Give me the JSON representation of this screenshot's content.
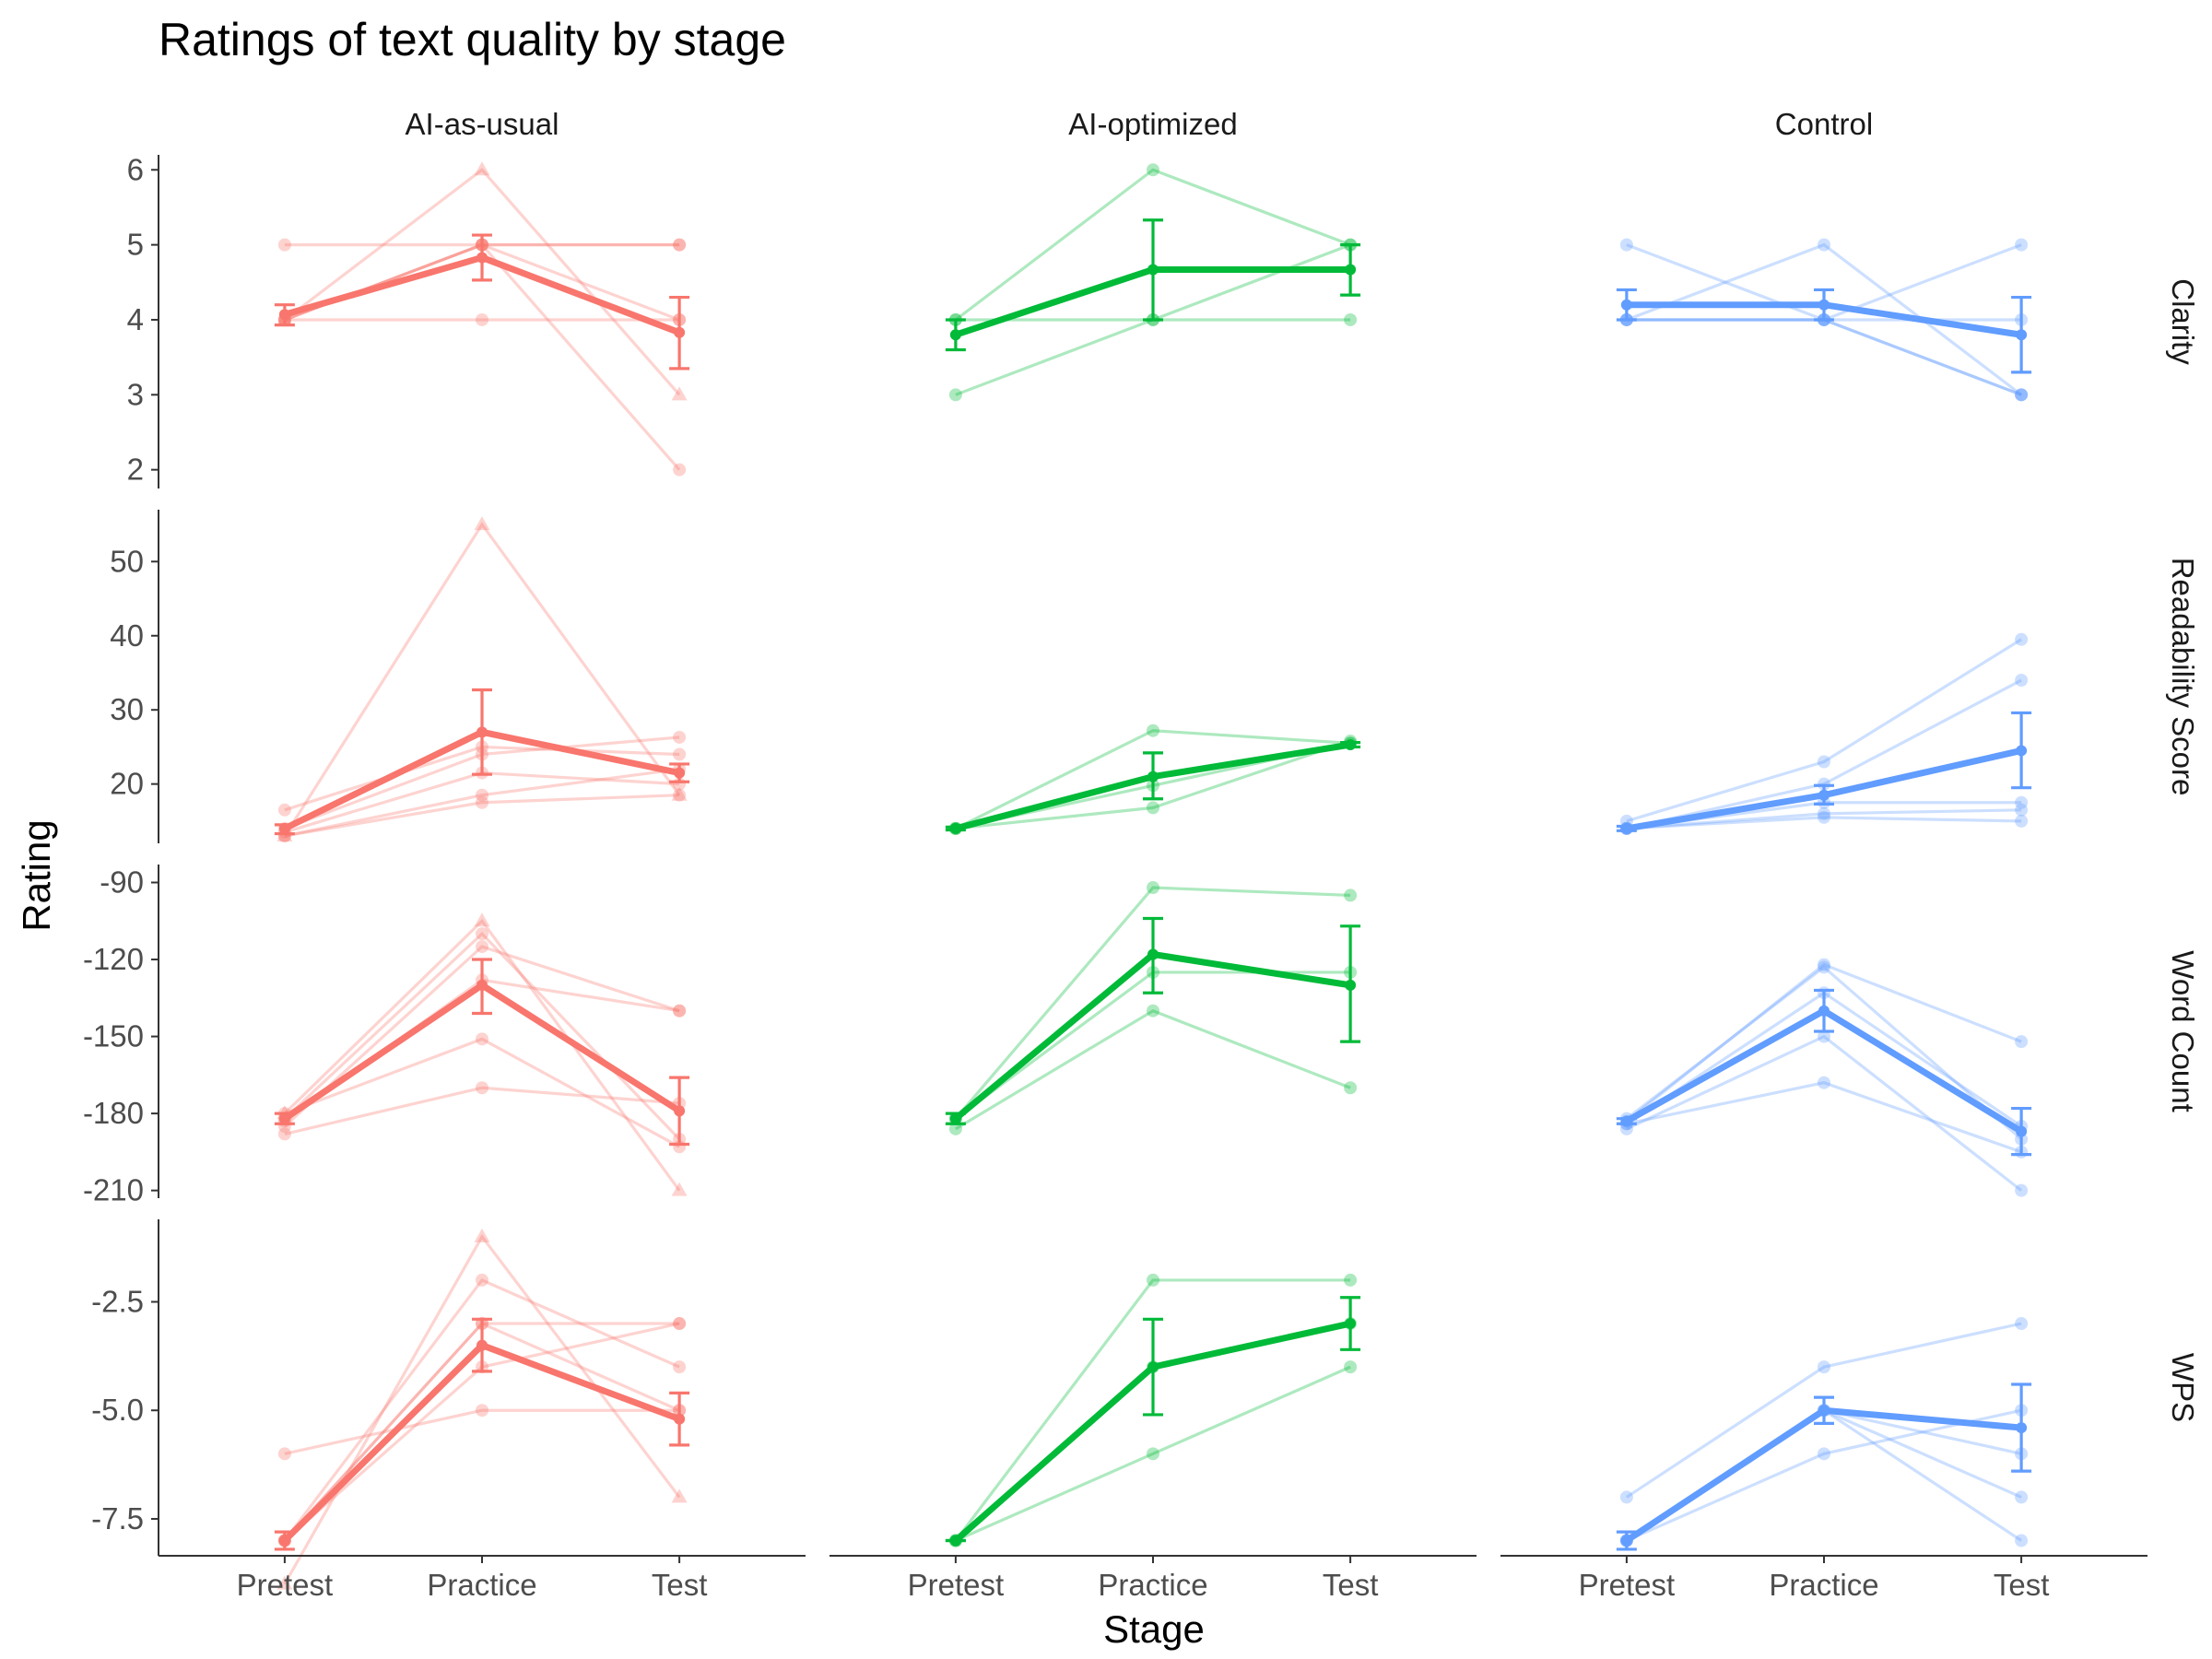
{
  "chart_data": {
    "type": "line",
    "title": "Ratings of text quality by stage",
    "xlabel": "Stage",
    "ylabel": "Rating",
    "x_categories": [
      "Pretest",
      "Practice",
      "Test"
    ],
    "columns": [
      {
        "key": "ai_usual",
        "label": "AI-as-usual",
        "color": "#F8766D"
      },
      {
        "key": "ai_opt",
        "label": "AI-optimized",
        "color": "#00BA38"
      },
      {
        "key": "control",
        "label": "Control",
        "color": "#619CFF"
      }
    ],
    "rows": [
      {
        "label": "Clarity",
        "ylim": [
          1.75,
          6.2
        ],
        "ticks": [
          2,
          3,
          4,
          5,
          6
        ],
        "tick_labels": [
          "2",
          "3",
          "4",
          "5",
          "6"
        ],
        "panels": {
          "ai_usual": {
            "individual": [
              [
                4,
                6,
                3
              ],
              [
                4,
                5,
                5
              ],
              [
                4,
                5,
                2
              ],
              [
                4,
                5,
                4
              ],
              [
                5,
                5,
                5
              ],
              [
                4,
                4,
                4
              ]
            ],
            "mean": [
              4.07,
              4.83,
              3.83
            ],
            "err": [
              [
                3.93,
                4.2
              ],
              [
                4.53,
                5.13
              ],
              [
                3.35,
                4.3
              ]
            ]
          },
          "ai_opt": {
            "individual": [
              [
                4,
                6,
                5
              ],
              [
                3,
                4,
                5
              ],
              [
                4,
                4,
                4
              ]
            ],
            "mean": [
              3.8,
              4.67,
              4.67
            ],
            "err": [
              [
                3.6,
                4.0
              ],
              [
                4.0,
                5.33
              ],
              [
                4.33,
                5.0
              ]
            ]
          },
          "control": {
            "individual": [
              [
                5,
                4,
                3
              ],
              [
                4,
                5,
                3
              ],
              [
                4,
                4,
                5
              ],
              [
                4,
                4,
                4
              ],
              [
                4,
                4,
                3
              ]
            ],
            "mean": [
              4.2,
              4.2,
              3.8
            ],
            "err": [
              [
                4.0,
                4.4
              ],
              [
                4.0,
                4.4
              ],
              [
                3.3,
                4.3
              ]
            ]
          }
        }
      },
      {
        "label": "Readability Score",
        "ylim": [
          12,
          57
        ],
        "ticks": [
          20,
          30,
          40,
          50
        ],
        "tick_labels": [
          "20",
          "30",
          "40",
          "50"
        ],
        "panels": {
          "ai_usual": {
            "individual": [
              [
                13,
                55,
                18.5
              ],
              [
                16.5,
                25,
                24
              ],
              [
                14,
                24,
                26.3
              ],
              [
                13,
                18.5,
                22
              ],
              [
                13.5,
                21.5,
                20
              ],
              [
                13,
                17.5,
                18.5
              ]
            ],
            "mean": [
              14,
              27,
              21.5
            ],
            "err": [
              [
                13.3,
                14.5
              ],
              [
                21.3,
                32.7
              ],
              [
                20.3,
                22.7
              ]
            ]
          },
          "ai_opt": {
            "individual": [
              [
                14,
                27.2,
                25.5
              ],
              [
                14,
                16.8,
                25.8
              ],
              [
                14,
                19.8,
                25.5
              ]
            ],
            "mean": [
              14,
              21,
              25.3
            ],
            "err": [
              [
                13.8,
                14.2
              ],
              [
                18.0,
                24.2
              ],
              [
                25.0,
                25.6
              ]
            ]
          },
          "control": {
            "individual": [
              [
                15,
                23,
                39.5
              ],
              [
                14,
                20,
                34
              ],
              [
                14,
                16,
                16.5
              ],
              [
                14,
                15.5,
                15
              ],
              [
                14,
                17.5,
                17.5
              ]
            ],
            "mean": [
              14,
              18.5,
              24.5
            ],
            "err": [
              [
                13.7,
                14.3
              ],
              [
                17.3,
                19.8
              ],
              [
                19.5,
                29.6
              ]
            ]
          }
        }
      },
      {
        "label": "Word Count",
        "ylim": [
          -213,
          -83
        ],
        "ticks": [
          -210,
          -180,
          -150,
          -120,
          -90
        ],
        "tick_labels": [
          "-210",
          "-180",
          "-150",
          "-120",
          "-90"
        ],
        "panels": {
          "ai_usual": {
            "individual": [
              [
                -180,
                -105,
                -210
              ],
              [
                -182,
                -110,
                -190
              ],
              [
                -185,
                -115,
                -140
              ],
              [
                -188,
                -170,
                -176
              ],
              [
                -180,
                -151,
                -193
              ],
              [
                -183,
                -128,
                -140
              ]
            ],
            "mean": [
              -182,
              -130,
              -179
            ],
            "err": [
              [
                -184,
                -180
              ],
              [
                -141,
                -120
              ],
              [
                -192,
                -166
              ]
            ]
          },
          "ai_opt": {
            "individual": [
              [
                -182,
                -92,
                -95
              ],
              [
                -186,
                -140,
                -170
              ],
              [
                -182,
                -125,
                -125
              ]
            ],
            "mean": [
              -182,
              -118,
              -130
            ],
            "err": [
              [
                -184,
                -180
              ],
              [
                -133,
                -104
              ],
              [
                -152,
                -107
              ]
            ]
          },
          "control": {
            "individual": [
              [
                -183,
                -122,
                -152
              ],
              [
                -184,
                -168,
                -195
              ],
              [
                -186,
                -150,
                -210
              ],
              [
                -182,
                -123,
                -190
              ],
              [
                -184,
                -133,
                -185
              ]
            ],
            "mean": [
              -183,
              -140,
              -187
            ],
            "err": [
              [
                -184,
                -182
              ],
              [
                -148,
                -132
              ],
              [
                -196,
                -178
              ]
            ]
          }
        }
      },
      {
        "label": "WPS",
        "ylim": [
          -8.35,
          -0.6
        ],
        "ticks": [
          -7.5,
          -5.0,
          -2.5
        ],
        "tick_labels": [
          "-7.5",
          "-5.0",
          "-2.5"
        ],
        "panels": {
          "ai_usual": {
            "individual": [
              [
                -9,
                -1,
                -7
              ],
              [
                -6,
                -5,
                -5
              ],
              [
                -8,
                -2,
                -4
              ],
              [
                -8,
                -3,
                -5
              ],
              [
                -8,
                -4,
                -3
              ],
              [
                -8,
                -3,
                -3
              ]
            ],
            "mean": [
              -8,
              -3.5,
              -5.2
            ],
            "err": [
              [
                -8.2,
                -7.8
              ],
              [
                -4.1,
                -2.9
              ],
              [
                -5.8,
                -4.6
              ]
            ]
          },
          "ai_opt": {
            "individual": [
              [
                -8,
                -2,
                -2
              ],
              [
                -8,
                -6,
                -4
              ],
              [
                -8,
                -4,
                -3
              ]
            ],
            "mean": [
              -8,
              -4,
              -3
            ],
            "err": [
              [
                -8,
                -8
              ],
              [
                -5.1,
                -2.9
              ],
              [
                -3.6,
                -2.4
              ]
            ]
          },
          "control": {
            "individual": [
              [
                -7,
                -4,
                -3
              ],
              [
                -8,
                -6,
                -5
              ],
              [
                -8,
                -5,
                -6
              ],
              [
                -8,
                -5,
                -7
              ],
              [
                -8,
                -5,
                -8
              ]
            ],
            "mean": [
              -8,
              -5,
              -5.4
            ],
            "err": [
              [
                -8.2,
                -7.8
              ],
              [
                -5.3,
                -4.7
              ],
              [
                -6.4,
                -4.4
              ]
            ]
          }
        }
      }
    ],
    "legend": "none",
    "grid": false
  }
}
